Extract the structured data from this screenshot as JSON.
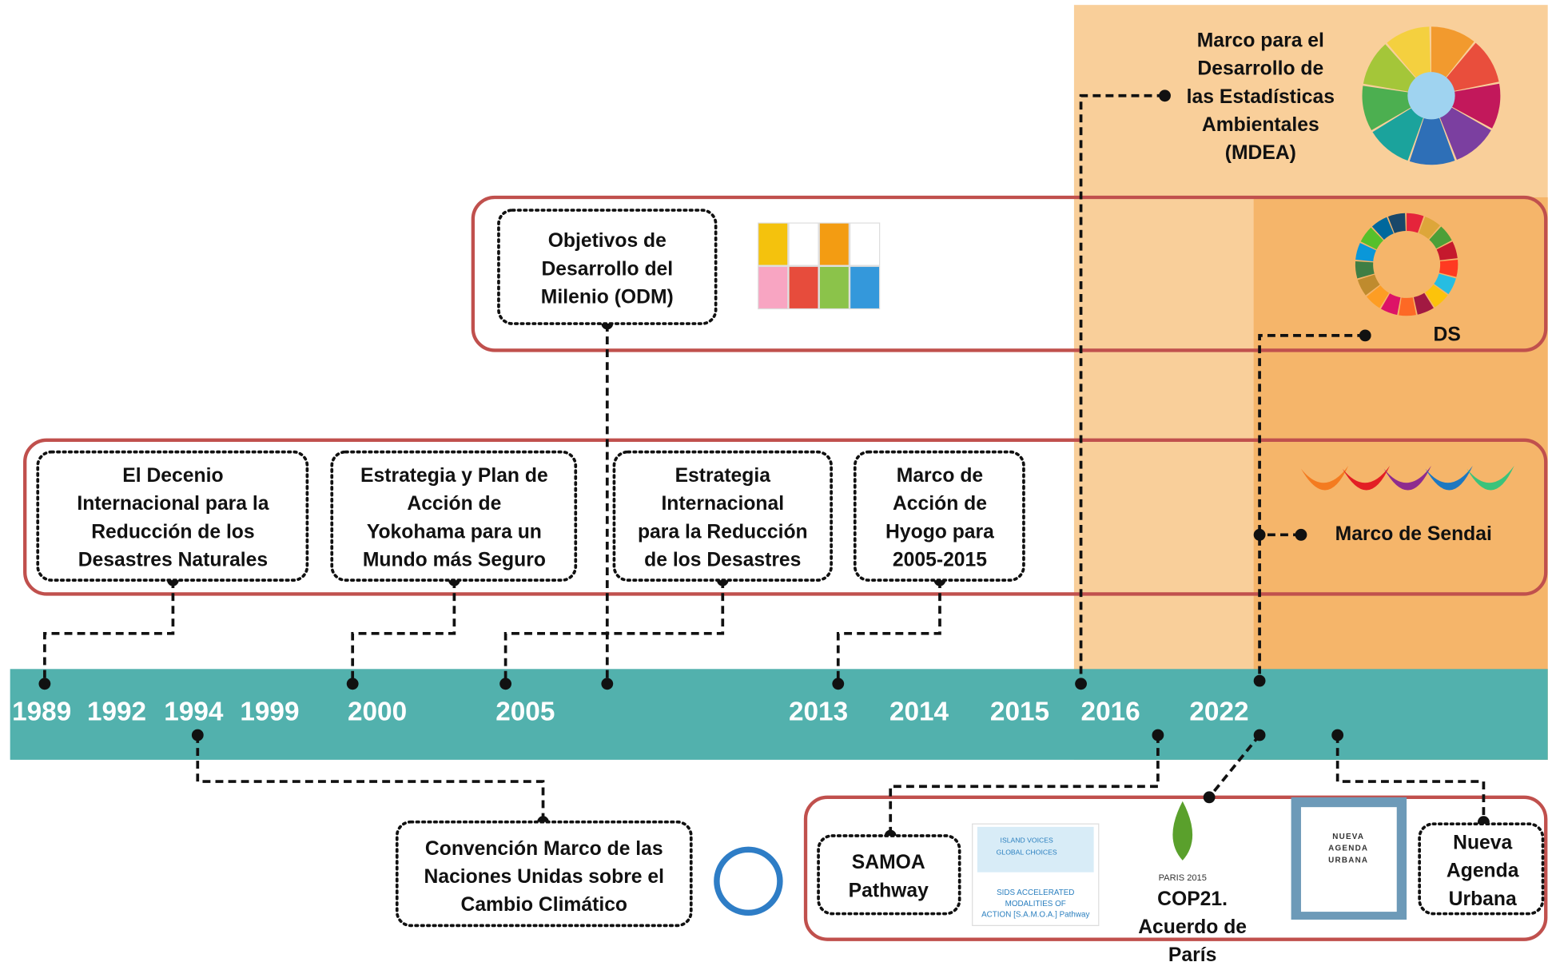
{
  "timeline": {
    "years": [
      "1989",
      "1992",
      "1994",
      "1999",
      "2000",
      "2005",
      "2013",
      "2014",
      "2015",
      "2016",
      "2022"
    ]
  },
  "nodes": [
    {
      "lines": [
        "Marco para el",
        "Desarrollo de",
        "las Estadísticas",
        "Ambientales",
        "(MDEA)"
      ]
    },
    {
      "lines": [
        "Objetivos de",
        "Desarrollo del",
        "Milenio (ODM)"
      ]
    },
    {
      "lines": [
        "DS"
      ]
    },
    {
      "lines": [
        "El Decenio",
        "Internacional para la",
        "Reducción de los",
        "Desastres Naturales"
      ]
    },
    {
      "lines": [
        "Estrategia y Plan de",
        "Acción de",
        "Yokohama para un",
        "Mundo más Seguro"
      ]
    },
    {
      "lines": [
        "Estrategia",
        "Internacional",
        "para la Reducción",
        "de los Desastres"
      ]
    },
    {
      "lines": [
        "Marco de",
        "Acción de",
        "Hyogo para",
        "2005-2015"
      ]
    },
    {
      "lines": [
        "Marco de Sendai"
      ]
    },
    {
      "lines": [
        "Convención Marco de las",
        "Naciones Unidas sobre el",
        "Cambio Climático"
      ]
    },
    {
      "lines": [
        "SAMOA",
        "Pathway"
      ]
    },
    {
      "lines": [
        "COP21.",
        "Acuerdo de",
        "París"
      ]
    },
    {
      "lines": [
        "Nueva",
        "Agenda",
        "Urbana"
      ]
    }
  ],
  "logos": {
    "samoa": [
      "ISLAND VOICES",
      "GLOBAL CHOICES",
      "SIDS ACCELERATED",
      "MODALITIES OF",
      "ACTION [S.A.M.O.A.] Pathway"
    ],
    "paris": [
      "PARIS 2015"
    ],
    "urbana": [
      "NUEVA",
      "AGENDA",
      "URBANA"
    ]
  }
}
